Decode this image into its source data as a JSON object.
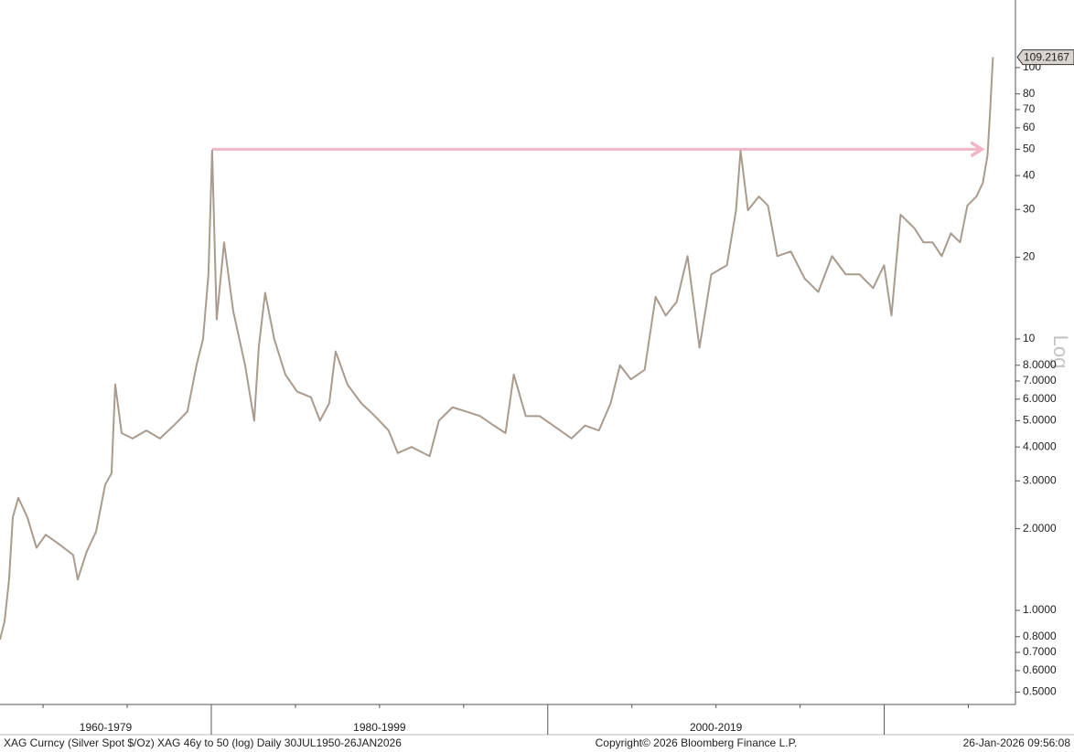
{
  "chart_data": {
    "type": "line",
    "log_scale": true,
    "grid": false,
    "y_axis_label": "Log",
    "footer_left": "XAG Curncy (Silver Spot  $/Oz) XAG 46y to 50 (log) Daily 30JUL1950-26JAN2026",
    "footer_center": "Copyright© 2026 Bloomberg Finance L.P.",
    "footer_right": "26-Jan-2026 09:56:08",
    "xlim": [
      1967.44,
      2027.8
    ],
    "xticks": [
      1970,
      1975,
      1985,
      1990,
      1995,
      2005,
      2010,
      2015,
      2025
    ],
    "periods": [
      {
        "label": "1960-1979",
        "from": 1960,
        "to": 1980
      },
      {
        "label": "1980-1999",
        "from": 1980,
        "to": 2000
      },
      {
        "label": "2000-2019",
        "from": 2000,
        "to": 2020
      }
    ],
    "ylim": [
      0.45,
      177.4
    ],
    "yticks": [
      100,
      80,
      70,
      60,
      50,
      40,
      30,
      20,
      10,
      {
        "value": 8,
        "label": "8.0000"
      },
      {
        "value": 7,
        "label": "7.0000"
      },
      {
        "value": 6,
        "label": "6.0000"
      },
      {
        "value": 5,
        "label": "5.0000"
      },
      {
        "value": 4,
        "label": "4.0000"
      },
      {
        "value": 3,
        "label": "3.0000"
      },
      {
        "value": 2,
        "label": "2.0000"
      },
      {
        "value": 1,
        "label": "1.0000"
      },
      {
        "value": 0.8,
        "label": "0.8000"
      },
      {
        "value": 0.7,
        "label": "0.7000"
      },
      {
        "value": 0.6,
        "label": "0.6000"
      },
      {
        "value": 0.5,
        "label": "0.5000"
      }
    ],
    "reference_line": {
      "value": 50,
      "x": [
        1980.05,
        2025.8
      ],
      "color": "#f2b5c5"
    },
    "series": [
      {
        "name": "XAG Curncy",
        "color": "#a99b8d",
        "x": [
          1967.44,
          1967.71,
          1967.98,
          1968.2,
          1968.53,
          1969.07,
          1969.61,
          1970.16,
          1970.97,
          1971.79,
          1972.06,
          1972.6,
          1973.15,
          1973.69,
          1974.07,
          1974.29,
          1974.67,
          1975.32,
          1976.14,
          1976.95,
          1977.77,
          1978.58,
          1979.12,
          1979.51,
          1979.83,
          1980.05,
          1980.32,
          1980.76,
          1981.3,
          1982.01,
          1982.55,
          1982.82,
          1983.2,
          1983.74,
          1984.4,
          1985.1,
          1985.92,
          1986.46,
          1987.01,
          1987.39,
          1988.09,
          1988.91,
          1989.72,
          1990.54,
          1991.08,
          1991.9,
          1992.98,
          1993.53,
          1994.34,
          1995.16,
          1995.97,
          1996.79,
          1997.49,
          1997.98,
          1998.69,
          1999.51,
          2000.32,
          2001.41,
          2002.22,
          2003.04,
          2003.74,
          2004.29,
          2004.94,
          2005.76,
          2006.41,
          2007.01,
          2007.66,
          2008.31,
          2009.02,
          2009.72,
          2010.65,
          2011.19,
          2011.46,
          2011.9,
          2012.55,
          2013.09,
          2013.64,
          2014.45,
          2015.27,
          2016.08,
          2016.9,
          2017.71,
          2018.53,
          2019.34,
          2019.99,
          2020.43,
          2020.97,
          2021.79,
          2022.33,
          2022.87,
          2023.42,
          2023.96,
          2024.51,
          2024.94,
          2025.48,
          2025.86,
          2026.14,
          2026.3,
          2026.46
        ],
        "values": [
          0.78,
          0.91,
          1.3,
          2.2,
          2.6,
          2.2,
          1.7,
          1.9,
          1.75,
          1.6,
          1.3,
          1.65,
          1.95,
          2.9,
          3.2,
          6.8,
          4.5,
          4.3,
          4.6,
          4.3,
          4.8,
          5.4,
          8.0,
          10.0,
          17.3,
          49.4,
          11.8,
          22.7,
          12.7,
          8.0,
          5.0,
          9.3,
          14.8,
          10.0,
          7.4,
          6.4,
          6.1,
          5.0,
          5.8,
          9.0,
          6.8,
          5.8,
          5.2,
          4.6,
          3.8,
          4.0,
          3.7,
          5.0,
          5.6,
          5.4,
          5.2,
          4.8,
          4.5,
          7.4,
          5.2,
          5.2,
          4.8,
          4.3,
          4.8,
          4.6,
          5.8,
          8.0,
          7.1,
          7.7,
          14.3,
          12.2,
          13.7,
          20.2,
          9.3,
          17.3,
          18.7,
          29.8,
          49.4,
          29.8,
          33.5,
          31.0,
          20.2,
          21.0,
          16.7,
          14.9,
          20.2,
          17.3,
          17.3,
          15.4,
          18.7,
          12.2,
          28.7,
          25.6,
          22.7,
          22.7,
          20.2,
          24.5,
          22.7,
          31.0,
          33.5,
          37.6,
          47.5,
          70.0,
          109.2167
        ]
      }
    ]
  }
}
